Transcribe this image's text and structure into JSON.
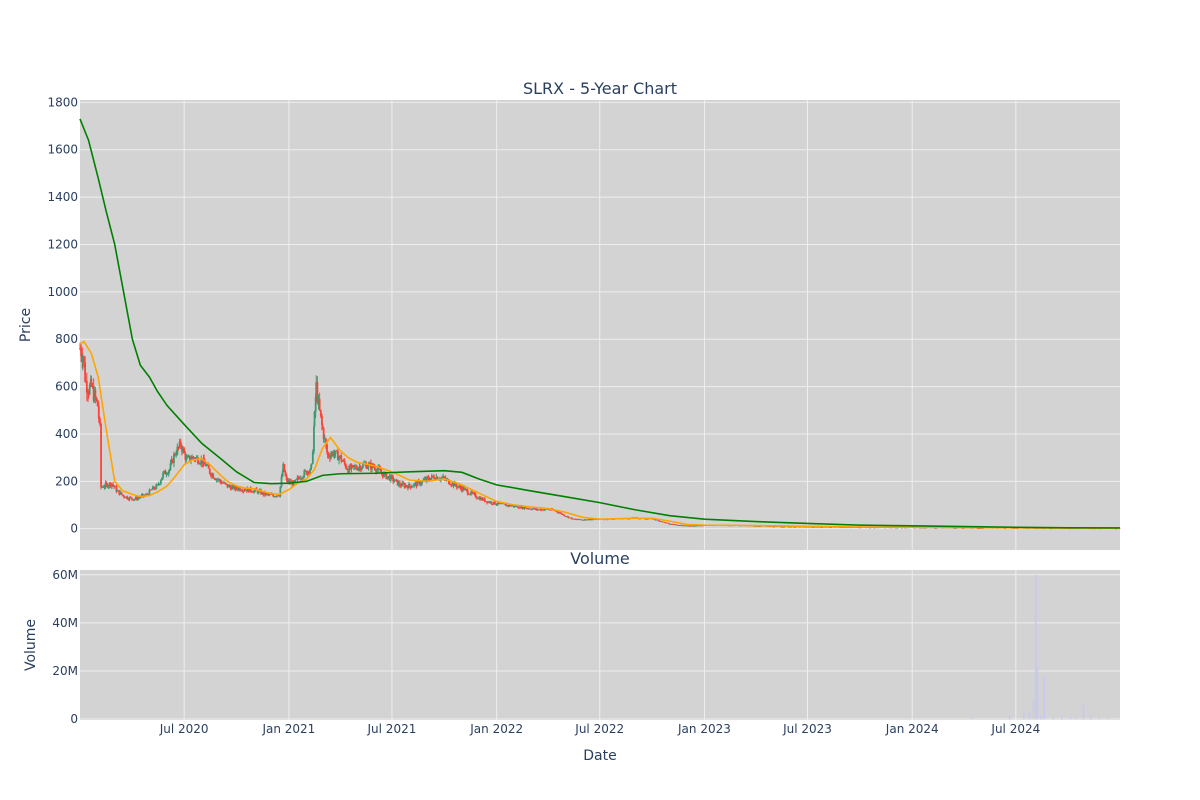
{
  "chart_data": [
    {
      "type": "candlestick",
      "title": "SLRX - 5-Year Chart",
      "ylabel": "Price",
      "ylim": [
        -90,
        1810
      ],
      "yticks": [
        0,
        200,
        400,
        600,
        800,
        1000,
        1200,
        1400,
        1600,
        1800
      ],
      "grid": true,
      "colors": {
        "plot_bg": "#d3d3d3",
        "grid": "#eeeeee",
        "up": "#3d9970",
        "down": "#ff4136",
        "ma_short": "#ffa500",
        "ma_long": "#008000"
      },
      "price_path": [
        [
          "2019-12-31",
          760
        ],
        [
          "2020-01-05",
          735
        ],
        [
          "2020-01-10",
          620
        ],
        [
          "2020-01-15",
          590
        ],
        [
          "2020-01-20",
          600
        ],
        [
          "2020-01-25",
          560
        ],
        [
          "2020-01-31",
          520
        ],
        [
          "2020-02-04",
          420
        ],
        [
          "2020-02-06",
          175
        ],
        [
          "2020-02-15",
          185
        ],
        [
          "2020-02-25",
          190
        ],
        [
          "2020-03-05",
          160
        ],
        [
          "2020-03-15",
          140
        ],
        [
          "2020-03-25",
          130
        ],
        [
          "2020-04-05",
          125
        ],
        [
          "2020-04-15",
          135
        ],
        [
          "2020-04-25",
          140
        ],
        [
          "2020-05-05",
          165
        ],
        [
          "2020-05-15",
          180
        ],
        [
          "2020-05-25",
          230
        ],
        [
          "2020-06-05",
          250
        ],
        [
          "2020-06-15",
          320
        ],
        [
          "2020-06-25",
          355
        ],
        [
          "2020-07-05",
          290
        ],
        [
          "2020-07-15",
          300
        ],
        [
          "2020-07-25",
          295
        ],
        [
          "2020-08-05",
          280
        ],
        [
          "2020-08-15",
          240
        ],
        [
          "2020-08-25",
          215
        ],
        [
          "2020-09-05",
          195
        ],
        [
          "2020-09-15",
          180
        ],
        [
          "2020-09-25",
          172
        ],
        [
          "2020-10-05",
          170
        ],
        [
          "2020-10-20",
          165
        ],
        [
          "2020-11-05",
          160
        ],
        [
          "2020-11-20",
          145
        ],
        [
          "2020-12-05",
          140
        ],
        [
          "2020-12-15",
          145
        ],
        [
          "2020-12-22",
          260
        ],
        [
          "2020-12-28",
          200
        ],
        [
          "2021-01-10",
          190
        ],
        [
          "2021-01-20",
          220
        ],
        [
          "2021-02-01",
          240
        ],
        [
          "2021-02-10",
          260
        ],
        [
          "2021-02-15",
          470
        ],
        [
          "2021-02-18",
          600
        ],
        [
          "2021-02-22",
          520
        ],
        [
          "2021-03-01",
          420
        ],
        [
          "2021-03-10",
          310
        ],
        [
          "2021-03-20",
          320
        ],
        [
          "2021-04-01",
          300
        ],
        [
          "2021-04-15",
          250
        ],
        [
          "2021-05-01",
          260
        ],
        [
          "2021-05-15",
          270
        ],
        [
          "2021-06-01",
          260
        ],
        [
          "2021-06-15",
          230
        ],
        [
          "2021-07-01",
          210
        ],
        [
          "2021-07-15",
          185
        ],
        [
          "2021-08-01",
          180
        ],
        [
          "2021-08-15",
          190
        ],
        [
          "2021-09-01",
          210
        ],
        [
          "2021-09-15",
          220
        ],
        [
          "2021-10-01",
          210
        ],
        [
          "2021-10-15",
          190
        ],
        [
          "2021-11-01",
          170
        ],
        [
          "2021-11-15",
          150
        ],
        [
          "2021-12-01",
          130
        ],
        [
          "2021-12-15",
          115
        ],
        [
          "2022-01-01",
          105
        ],
        [
          "2022-01-15",
          100
        ],
        [
          "2022-02-01",
          95
        ],
        [
          "2022-02-15",
          90
        ],
        [
          "2022-03-01",
          85
        ],
        [
          "2022-03-15",
          80
        ],
        [
          "2022-04-01",
          82
        ],
        [
          "2022-04-15",
          75
        ],
        [
          "2022-05-01",
          55
        ],
        [
          "2022-05-15",
          40
        ],
        [
          "2022-06-01",
          38
        ],
        [
          "2022-07-01",
          40
        ],
        [
          "2022-08-01",
          42
        ],
        [
          "2022-09-01",
          45
        ],
        [
          "2022-10-01",
          42
        ],
        [
          "2022-11-01",
          20
        ],
        [
          "2022-12-01",
          12
        ],
        [
          "2023-01-01",
          14
        ],
        [
          "2023-02-01",
          16
        ],
        [
          "2023-03-01",
          14
        ],
        [
          "2023-05-01",
          10
        ],
        [
          "2023-07-01",
          8
        ],
        [
          "2023-10-01",
          6
        ],
        [
          "2024-01-01",
          5
        ],
        [
          "2024-04-01",
          4
        ],
        [
          "2024-07-01",
          3
        ],
        [
          "2024-10-01",
          2
        ],
        [
          "2024-12-31",
          2
        ]
      ],
      "ma_short": [
        [
          "2019-12-31",
          780
        ],
        [
          "2020-01-07",
          790
        ],
        [
          "2020-01-20",
          740
        ],
        [
          "2020-02-01",
          640
        ],
        [
          "2020-02-15",
          420
        ],
        [
          "2020-03-01",
          200
        ],
        [
          "2020-03-15",
          160
        ],
        [
          "2020-04-01",
          145
        ],
        [
          "2020-04-15",
          135
        ],
        [
          "2020-05-01",
          140
        ],
        [
          "2020-05-15",
          155
        ],
        [
          "2020-06-01",
          180
        ],
        [
          "2020-06-15",
          220
        ],
        [
          "2020-07-01",
          270
        ],
        [
          "2020-07-15",
          290
        ],
        [
          "2020-08-01",
          295
        ],
        [
          "2020-08-15",
          270
        ],
        [
          "2020-09-01",
          230
        ],
        [
          "2020-09-15",
          200
        ],
        [
          "2020-10-01",
          180
        ],
        [
          "2020-10-15",
          172
        ],
        [
          "2020-11-01",
          168
        ],
        [
          "2020-11-15",
          158
        ],
        [
          "2020-12-01",
          148
        ],
        [
          "2020-12-15",
          145
        ],
        [
          "2021-01-01",
          165
        ],
        [
          "2021-01-15",
          190
        ],
        [
          "2021-02-01",
          210
        ],
        [
          "2021-02-15",
          250
        ],
        [
          "2021-03-01",
          340
        ],
        [
          "2021-03-15",
          385
        ],
        [
          "2021-04-01",
          330
        ],
        [
          "2021-04-15",
          300
        ],
        [
          "2021-05-01",
          280
        ],
        [
          "2021-06-01",
          265
        ],
        [
          "2021-07-01",
          240
        ],
        [
          "2021-08-01",
          205
        ],
        [
          "2021-09-01",
          200
        ],
        [
          "2021-10-01",
          210
        ],
        [
          "2021-11-01",
          185
        ],
        [
          "2021-12-01",
          150
        ],
        [
          "2022-01-01",
          115
        ],
        [
          "2022-02-01",
          100
        ],
        [
          "2022-03-01",
          92
        ],
        [
          "2022-04-01",
          85
        ],
        [
          "2022-05-01",
          70
        ],
        [
          "2022-06-01",
          48
        ],
        [
          "2022-07-01",
          40
        ],
        [
          "2022-08-01",
          42
        ],
        [
          "2022-09-01",
          44
        ],
        [
          "2022-10-01",
          44
        ],
        [
          "2022-11-01",
          32
        ],
        [
          "2022-12-01",
          18
        ],
        [
          "2023-01-01",
          15
        ],
        [
          "2023-03-01",
          14
        ],
        [
          "2023-06-01",
          11
        ],
        [
          "2023-09-01",
          8
        ],
        [
          "2024-01-01",
          6
        ],
        [
          "2024-06-01",
          4
        ],
        [
          "2024-12-31",
          2
        ]
      ],
      "ma_long": [
        [
          "2019-12-31",
          1730
        ],
        [
          "2020-01-15",
          1640
        ],
        [
          "2020-02-01",
          1480
        ],
        [
          "2020-02-15",
          1340
        ],
        [
          "2020-03-01",
          1200
        ],
        [
          "2020-03-15",
          1020
        ],
        [
          "2020-04-01",
          800
        ],
        [
          "2020-04-15",
          690
        ],
        [
          "2020-05-01",
          640
        ],
        [
          "2020-05-15",
          580
        ],
        [
          "2020-06-01",
          520
        ],
        [
          "2020-07-01",
          440
        ],
        [
          "2020-08-01",
          360
        ],
        [
          "2020-09-01",
          300
        ],
        [
          "2020-10-01",
          240
        ],
        [
          "2020-11-01",
          195
        ],
        [
          "2020-12-01",
          190
        ],
        [
          "2021-01-01",
          192
        ],
        [
          "2021-02-01",
          200
        ],
        [
          "2021-03-01",
          225
        ],
        [
          "2021-04-01",
          232
        ],
        [
          "2021-06-01",
          234
        ],
        [
          "2021-08-01",
          240
        ],
        [
          "2021-10-01",
          245
        ],
        [
          "2021-11-01",
          238
        ],
        [
          "2021-12-01",
          210
        ],
        [
          "2022-01-01",
          185
        ],
        [
          "2022-03-01",
          160
        ],
        [
          "2022-05-01",
          135
        ],
        [
          "2022-07-01",
          110
        ],
        [
          "2022-09-01",
          80
        ],
        [
          "2022-11-01",
          55
        ],
        [
          "2023-01-01",
          40
        ],
        [
          "2023-04-01",
          30
        ],
        [
          "2023-07-01",
          22
        ],
        [
          "2023-10-01",
          15
        ],
        [
          "2024-01-01",
          12
        ],
        [
          "2024-04-01",
          9
        ],
        [
          "2024-07-01",
          6
        ],
        [
          "2024-10-01",
          4
        ],
        [
          "2024-12-31",
          3
        ]
      ]
    },
    {
      "type": "bar",
      "title": "Volume",
      "xlabel": "Date",
      "ylabel": "Volume",
      "ylim": [
        -0.4,
        62
      ],
      "ytick_values": [
        0,
        20,
        40,
        60
      ],
      "ytick_labels": [
        "0",
        "20M",
        "40M",
        "60M"
      ],
      "xlim": [
        "2019-12-31",
        "2024-12-31"
      ],
      "xticks": [
        "2020-07-01",
        "2021-01-01",
        "2021-07-01",
        "2022-01-01",
        "2022-07-01",
        "2023-01-01",
        "2023-07-01",
        "2024-01-01",
        "2024-07-01"
      ],
      "xtick_labels": [
        "Jul 2020",
        "Jan 2021",
        "Jul 2021",
        "Jan 2022",
        "Jul 2022",
        "Jan 2023",
        "Jul 2023",
        "Jan 2024",
        "Jul 2024"
      ],
      "colors": {
        "plot_bg": "#d3d3d3",
        "grid": "#eeeeee",
        "bar": "#c8c8f0"
      },
      "bars": [
        [
          "2024-04-15",
          0.8
        ],
        [
          "2024-06-20",
          1.2
        ],
        [
          "2024-07-15",
          2.5
        ],
        [
          "2024-07-25",
          3
        ],
        [
          "2024-08-01",
          8
        ],
        [
          "2024-08-05",
          60
        ],
        [
          "2024-08-08",
          22
        ],
        [
          "2024-08-14",
          1.5
        ],
        [
          "2024-08-20",
          18
        ],
        [
          "2024-09-05",
          1
        ],
        [
          "2024-09-20",
          1.5
        ],
        [
          "2024-10-05",
          1
        ],
        [
          "2024-10-15",
          0.8
        ],
        [
          "2024-10-28",
          6.5
        ],
        [
          "2024-11-10",
          1.5
        ],
        [
          "2024-11-25",
          1
        ],
        [
          "2024-12-10",
          0.8
        ]
      ]
    }
  ]
}
